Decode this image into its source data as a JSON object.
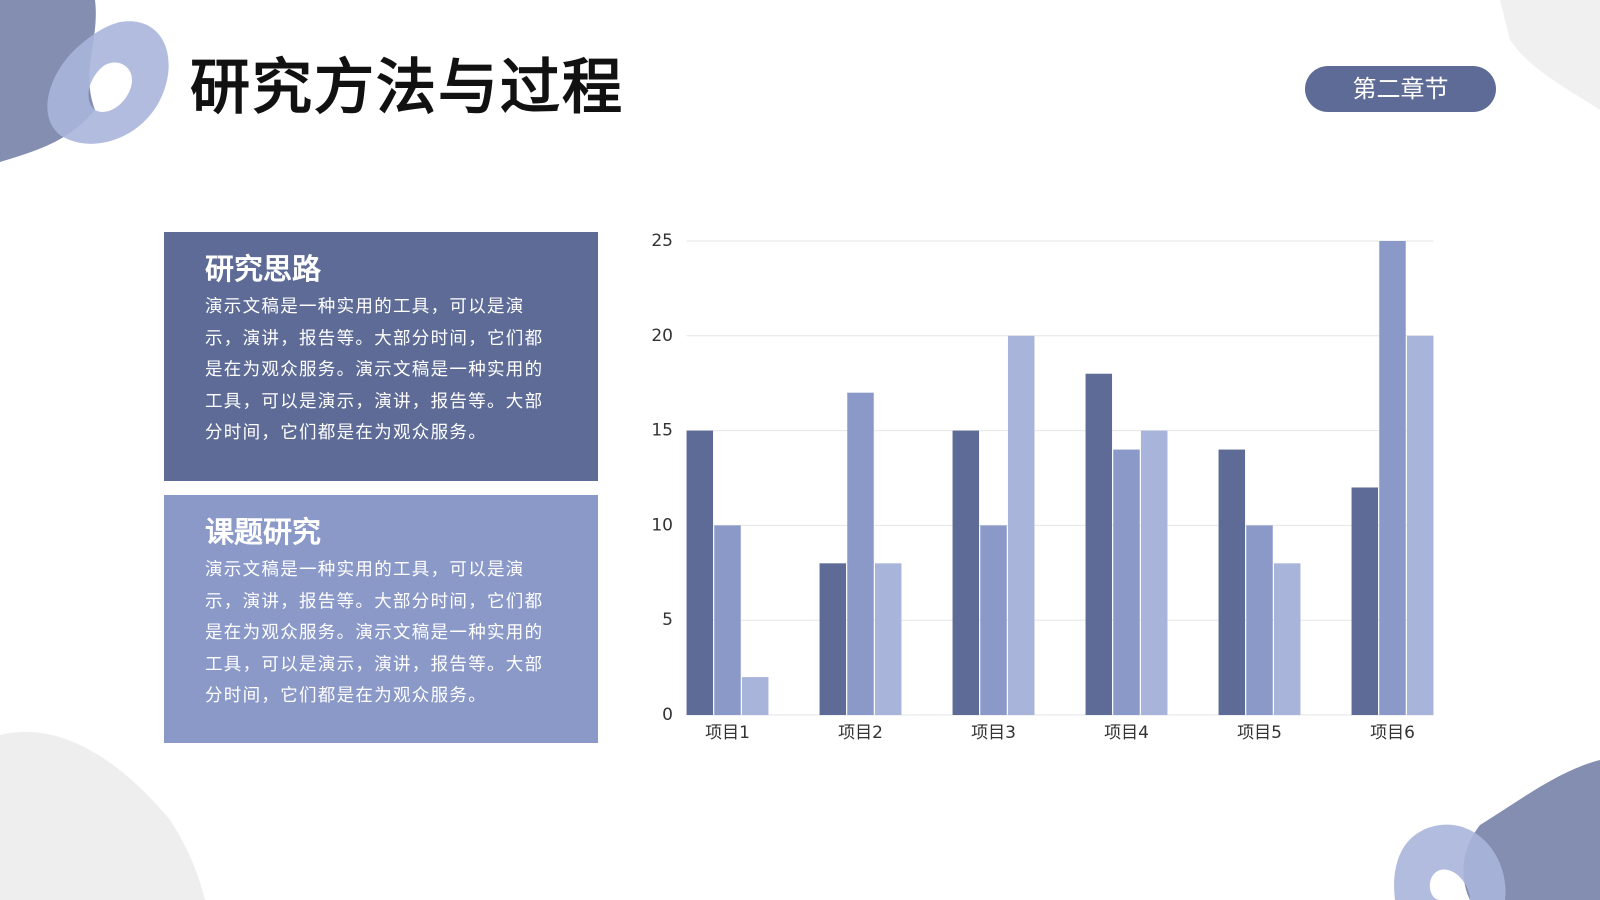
{
  "header": {
    "title": "研究方法与过程",
    "badge": "第二章节"
  },
  "panels": [
    {
      "heading": "研究思路",
      "body": "演示文稿是一种实用的工具，可以是演示，演讲，报告等。大部分时间，它们都是在为观众服务。演示文稿是一种实用的工具，可以是演示，演讲，报告等。大部分时间，它们都是在为观众服务。"
    },
    {
      "heading": "课题研究",
      "body": "演示文稿是一种实用的工具，可以是演示，演讲，报告等。大部分时间，它们都是在为观众服务。演示文稿是一种实用的工具，可以是演示，演讲，报告等。大部分时间，它们都是在为观众服务。"
    }
  ],
  "chart_data": {
    "type": "bar",
    "categories": [
      "项目1",
      "项目2",
      "项目3",
      "项目4",
      "项目5",
      "项目6"
    ],
    "series": [
      {
        "color": "#5d6b96",
        "values": [
          15,
          8,
          15,
          18,
          14,
          12
        ]
      },
      {
        "color": "#8b99c8",
        "values": [
          10,
          17,
          10,
          14,
          10,
          25
        ]
      },
      {
        "color": "#a9b4da",
        "values": [
          2,
          8,
          20,
          15,
          8,
          20
        ]
      }
    ],
    "ylim": [
      0,
      25
    ],
    "yticks": [
      0,
      5,
      10,
      15,
      20,
      25
    ],
    "grid": true
  }
}
